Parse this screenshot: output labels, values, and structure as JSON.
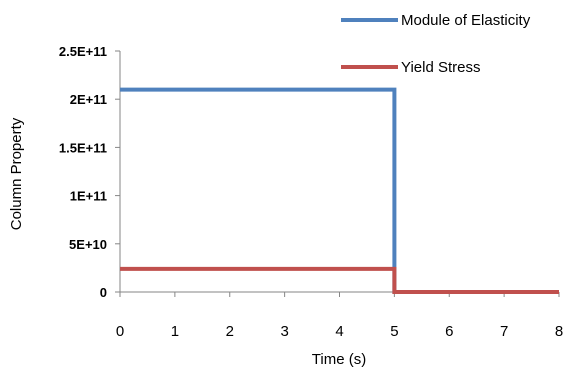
{
  "chart_data": {
    "type": "line",
    "title": "",
    "xlabel": "Time (s)",
    "ylabel": "Column Property",
    "xlim": [
      0,
      8
    ],
    "ylim": [
      0,
      250000000000
    ],
    "x_ticks": [
      0,
      1,
      2,
      3,
      4,
      5,
      6,
      7,
      8
    ],
    "x_tick_labels": [
      "0",
      "1",
      "2",
      "3",
      "4",
      "5",
      "6",
      "7",
      "8"
    ],
    "y_ticks": [
      0,
      50000000000,
      100000000000,
      150000000000,
      200000000000,
      250000000000
    ],
    "y_tick_labels": [
      "0",
      "5E+10",
      "1E+11",
      "1.5E+11",
      "2E+11",
      "2.5E+11"
    ],
    "grid": false,
    "legend_position": "top-right",
    "series": [
      {
        "name": "Module of Elasticity",
        "color": "#4F81BD",
        "points": [
          [
            0,
            210000000000
          ],
          [
            5,
            210000000000
          ],
          [
            5,
            0
          ],
          [
            8,
            0
          ]
        ]
      },
      {
        "name": "Yield Stress",
        "color": "#C0504D",
        "points": [
          [
            0,
            24000000000
          ],
          [
            5,
            24000000000
          ],
          [
            5,
            0
          ],
          [
            8,
            0
          ]
        ]
      }
    ]
  }
}
